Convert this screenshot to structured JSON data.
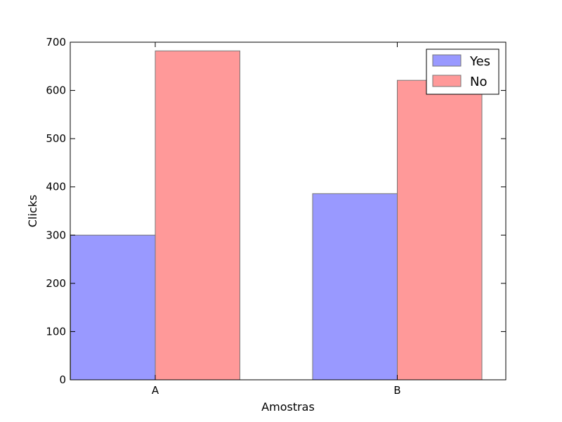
{
  "chart_data": {
    "type": "bar",
    "title": "",
    "xlabel": "Amostras",
    "ylabel": "Clicks",
    "categories": [
      "A",
      "B"
    ],
    "series": [
      {
        "name": "Yes",
        "values": [
          300,
          386
        ],
        "color": "#9999ff"
      },
      {
        "name": "No",
        "values": [
          682,
          621
        ],
        "color": "#ff9999"
      }
    ],
    "ylim": [
      0,
      700
    ],
    "yticks": [
      0,
      100,
      200,
      300,
      400,
      500,
      600,
      700
    ],
    "legend": "top-right",
    "grid": false
  }
}
